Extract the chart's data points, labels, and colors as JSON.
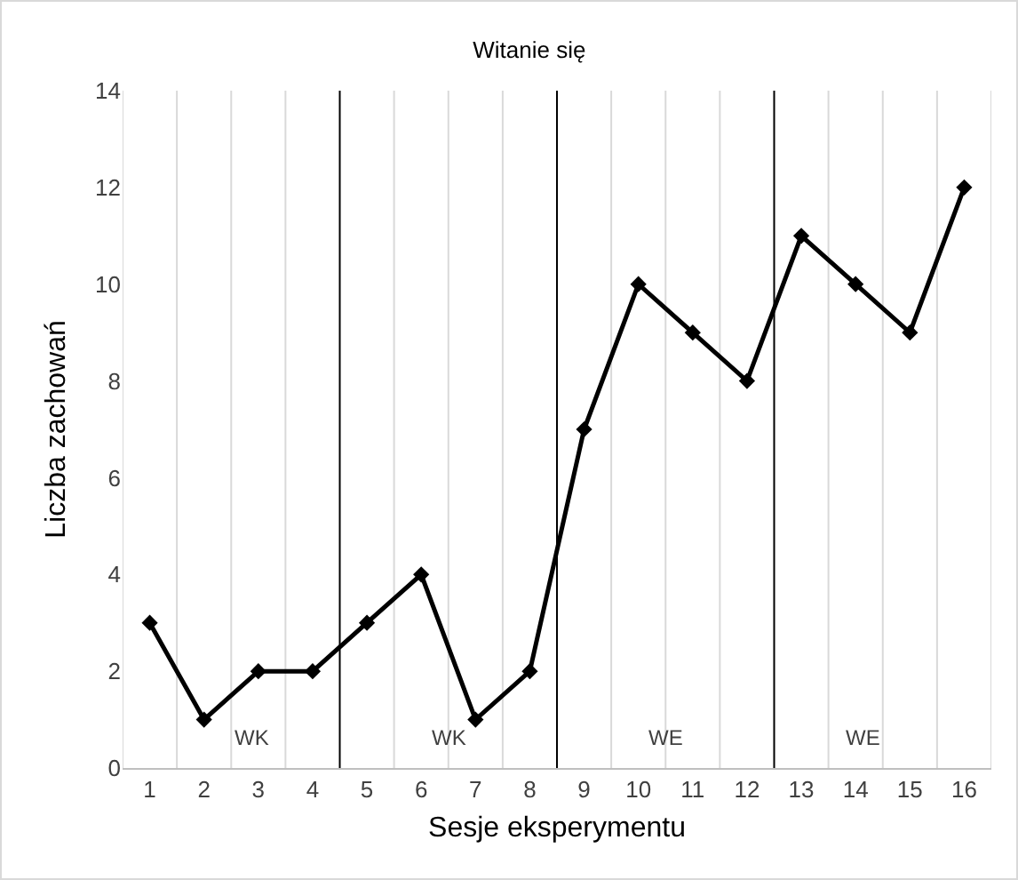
{
  "chart_data": {
    "type": "line",
    "title": "Witanie się",
    "xlabel": "Sesje eksperymentu",
    "ylabel": "Liczba zachowań",
    "x": [
      1,
      2,
      3,
      4,
      5,
      6,
      7,
      8,
      9,
      10,
      11,
      12,
      13,
      14,
      15,
      16
    ],
    "series": [
      {
        "color": "#000000",
        "values": [
          3,
          1,
          2,
          2,
          3,
          4,
          1,
          2,
          7,
          10,
          9,
          8,
          11,
          10,
          9,
          12
        ]
      }
    ],
    "xlim": [
      0.5,
      16.5
    ],
    "xticks": [
      {
        "value": 0.5,
        "label": null
      },
      1,
      {
        "value": 1.5,
        "label": null
      },
      2,
      {
        "value": 2.5,
        "label": null
      },
      3,
      {
        "value": 3.5,
        "label": null
      },
      4,
      5,
      {
        "value": 5.5,
        "label": null
      },
      6,
      {
        "value": 6.5,
        "label": null
      },
      7,
      {
        "value": 7.5,
        "label": null
      },
      8,
      9,
      {
        "value": 9.5,
        "label": null
      },
      10,
      {
        "value": 10.5,
        "label": null
      },
      11,
      {
        "value": 11.5,
        "label": null
      },
      12,
      13,
      {
        "value": 13.5,
        "label": null
      },
      14,
      {
        "value": 14.5,
        "label": null
      },
      15,
      {
        "value": 15.5,
        "label": null
      },
      16,
      {
        "value": 16.5,
        "label": null
      }
    ],
    "ylim": [
      0,
      14
    ],
    "yticks": [
      0,
      2,
      4,
      6,
      8,
      10,
      12,
      14
    ],
    "grid": "x",
    "marker": "diamond",
    "line_style": "solid",
    "legend": false,
    "ref_lines": [
      {
        "axis": "x",
        "value": 4.5,
        "color": "#000000"
      },
      {
        "axis": "x",
        "value": 8.5,
        "color": "#000000"
      },
      {
        "axis": "x",
        "value": 12.5,
        "color": "#000000"
      }
    ],
    "annotations": [
      "WK",
      "WK",
      "WE",
      "WE"
    ]
  }
}
